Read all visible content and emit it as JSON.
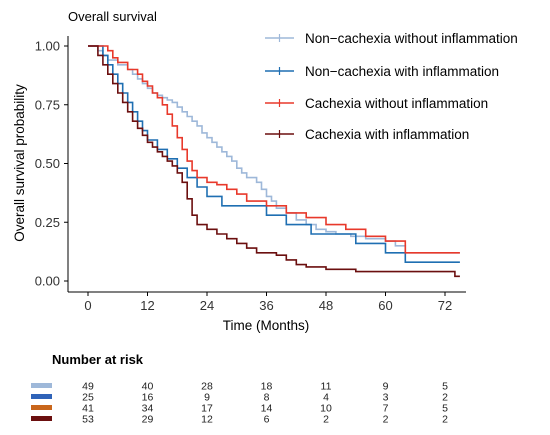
{
  "chart_data": {
    "type": "line",
    "subtype": "kaplan-meier-step",
    "title": "Overall survival",
    "xlabel": "Time (Months)",
    "ylabel": "Overall survival probability",
    "xlim": [
      -5,
      75
    ],
    "ylim": [
      0,
      1
    ],
    "xticks": [
      0,
      12,
      24,
      36,
      48,
      60,
      72
    ],
    "yticks": [
      0.0,
      0.25,
      0.5,
      0.75,
      1.0
    ],
    "ytick_labels": [
      "0.00",
      "0.25",
      "0.50",
      "0.75",
      "1.00"
    ],
    "grid": false,
    "legend_position": "top-right",
    "series": [
      {
        "name": "Non−cachexia without inflammation",
        "color": "#9eb8d9",
        "points": [
          [
            0,
            1.0
          ],
          [
            2,
            0.98
          ],
          [
            3,
            0.96
          ],
          [
            4,
            0.94
          ],
          [
            6,
            0.92
          ],
          [
            8,
            0.9
          ],
          [
            9,
            0.88
          ],
          [
            10,
            0.86
          ],
          [
            11,
            0.84
          ],
          [
            12,
            0.82
          ],
          [
            13,
            0.8
          ],
          [
            14,
            0.79
          ],
          [
            15,
            0.78
          ],
          [
            16,
            0.77
          ],
          [
            17,
            0.76
          ],
          [
            18,
            0.74
          ],
          [
            19,
            0.72
          ],
          [
            20,
            0.7
          ],
          [
            21,
            0.68
          ],
          [
            22,
            0.66
          ],
          [
            23,
            0.63
          ],
          [
            24,
            0.61
          ],
          [
            25,
            0.59
          ],
          [
            26,
            0.57
          ],
          [
            27,
            0.55
          ],
          [
            28,
            0.53
          ],
          [
            29,
            0.51
          ],
          [
            30,
            0.48
          ],
          [
            31,
            0.46
          ],
          [
            32,
            0.44
          ],
          [
            34,
            0.42
          ],
          [
            35,
            0.39
          ],
          [
            36,
            0.36
          ],
          [
            37,
            0.34
          ],
          [
            38,
            0.31
          ],
          [
            40,
            0.29
          ],
          [
            42,
            0.26
          ],
          [
            44,
            0.24
          ],
          [
            46,
            0.22
          ],
          [
            48,
            0.21
          ],
          [
            50,
            0.2
          ],
          [
            53,
            0.19
          ],
          [
            56,
            0.18
          ],
          [
            60,
            0.17
          ],
          [
            62,
            0.15
          ],
          [
            64,
            0.12
          ],
          [
            75,
            0.12
          ]
        ]
      },
      {
        "name": "Non−cachexia with inflammation",
        "color": "#1f6fb2",
        "points": [
          [
            0,
            1.0
          ],
          [
            3,
            0.96
          ],
          [
            4,
            0.92
          ],
          [
            5,
            0.88
          ],
          [
            6,
            0.84
          ],
          [
            7,
            0.8
          ],
          [
            8,
            0.76
          ],
          [
            9,
            0.72
          ],
          [
            10,
            0.68
          ],
          [
            11,
            0.64
          ],
          [
            12,
            0.6
          ],
          [
            14,
            0.56
          ],
          [
            16,
            0.52
          ],
          [
            18,
            0.48
          ],
          [
            20,
            0.44
          ],
          [
            22,
            0.4
          ],
          [
            24,
            0.36
          ],
          [
            27,
            0.32
          ],
          [
            36,
            0.28
          ],
          [
            40,
            0.24
          ],
          [
            45,
            0.2
          ],
          [
            54,
            0.16
          ],
          [
            60,
            0.12
          ],
          [
            64,
            0.08
          ],
          [
            75,
            0.08
          ]
        ]
      },
      {
        "name": "Cachexia without inflammation",
        "color": "#e8392b",
        "points": [
          [
            0,
            1.0
          ],
          [
            4,
            0.98
          ],
          [
            5,
            0.95
          ],
          [
            6,
            0.93
          ],
          [
            8,
            0.9
          ],
          [
            10,
            0.88
          ],
          [
            11,
            0.85
          ],
          [
            12,
            0.83
          ],
          [
            13,
            0.8
          ],
          [
            14,
            0.78
          ],
          [
            15,
            0.75
          ],
          [
            16,
            0.71
          ],
          [
            17,
            0.66
          ],
          [
            18,
            0.61
          ],
          [
            19,
            0.56
          ],
          [
            20,
            0.51
          ],
          [
            21,
            0.47
          ],
          [
            22,
            0.44
          ],
          [
            24,
            0.42
          ],
          [
            26,
            0.41
          ],
          [
            28,
            0.39
          ],
          [
            30,
            0.37
          ],
          [
            32,
            0.34
          ],
          [
            36,
            0.32
          ],
          [
            40,
            0.29
          ],
          [
            44,
            0.27
          ],
          [
            48,
            0.24
          ],
          [
            52,
            0.22
          ],
          [
            56,
            0.19
          ],
          [
            60,
            0.17
          ],
          [
            64,
            0.12
          ],
          [
            75,
            0.12
          ]
        ]
      },
      {
        "name": "Cachexia with inflammation",
        "color": "#6b0f0f",
        "points": [
          [
            0,
            1.0
          ],
          [
            2,
            0.96
          ],
          [
            3,
            0.92
          ],
          [
            4,
            0.88
          ],
          [
            5,
            0.84
          ],
          [
            6,
            0.8
          ],
          [
            7,
            0.76
          ],
          [
            8,
            0.72
          ],
          [
            9,
            0.68
          ],
          [
            10,
            0.65
          ],
          [
            11,
            0.62
          ],
          [
            12,
            0.59
          ],
          [
            13,
            0.57
          ],
          [
            14,
            0.55
          ],
          [
            15,
            0.53
          ],
          [
            16,
            0.51
          ],
          [
            17,
            0.49
          ],
          [
            18,
            0.46
          ],
          [
            19,
            0.42
          ],
          [
            20,
            0.35
          ],
          [
            21,
            0.28
          ],
          [
            22,
            0.24
          ],
          [
            24,
            0.22
          ],
          [
            26,
            0.2
          ],
          [
            28,
            0.18
          ],
          [
            30,
            0.16
          ],
          [
            32,
            0.14
          ],
          [
            34,
            0.12
          ],
          [
            38,
            0.11
          ],
          [
            40,
            0.09
          ],
          [
            42,
            0.07
          ],
          [
            44,
            0.06
          ],
          [
            48,
            0.05
          ],
          [
            54,
            0.04
          ],
          [
            74,
            0.02
          ],
          [
            75,
            0.02
          ]
        ]
      }
    ]
  },
  "risk_table": {
    "title": "Number at risk",
    "time_points": [
      0,
      12,
      24,
      36,
      48,
      60,
      72
    ],
    "rows": [
      {
        "color": "#9eb8d9",
        "values": [
          "49",
          "40",
          "28",
          "18",
          "11",
          "9",
          "5"
        ]
      },
      {
        "color": "#2f63b8",
        "values": [
          "25",
          "16",
          "9",
          "8",
          "4",
          "3",
          "2"
        ]
      },
      {
        "color": "#c9661b",
        "values": [
          "41",
          "34",
          "17",
          "14",
          "10",
          "7",
          "5"
        ]
      },
      {
        "color": "#6b0f0f",
        "values": [
          "53",
          "29",
          "12",
          "6",
          "2",
          "2",
          "2"
        ]
      }
    ]
  }
}
